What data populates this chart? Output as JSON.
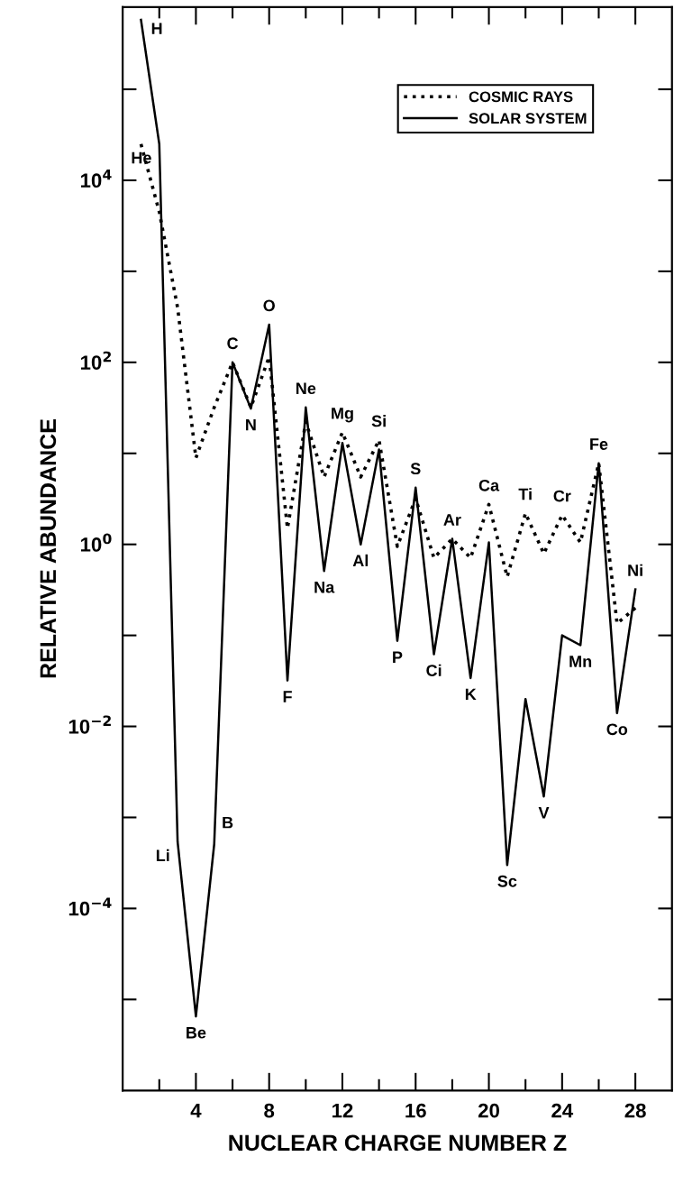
{
  "chart_data": {
    "type": "line",
    "xlabel": "NUCLEAR CHARGE NUMBER Z",
    "ylabel": "RELATIVE ABUNDANCE",
    "x": [
      1,
      2,
      3,
      4,
      5,
      6,
      7,
      8,
      9,
      10,
      11,
      12,
      13,
      14,
      15,
      16,
      17,
      18,
      19,
      20,
      21,
      22,
      23,
      24,
      25,
      26,
      27,
      28
    ],
    "series": [
      {
        "name": "COSMIC RAYS",
        "color": "#000000",
        "line_style": "dotted",
        "values": [
          25000,
          4500,
          400,
          8.9,
          32,
          100,
          32,
          115,
          1.5,
          22,
          5.5,
          17,
          5.5,
          14,
          0.95,
          3.2,
          0.71,
          1.15,
          0.71,
          2.75,
          0.44,
          2.2,
          0.79,
          2.1,
          1.05,
          7.8,
          0.135,
          0.2
        ]
      },
      {
        "name": "SOLAR SYSTEM",
        "color": "#000000",
        "line_style": "solid",
        "values": [
          580000,
          25000,
          0.00054,
          6.5e-06,
          0.00051,
          100,
          31,
          260,
          0.032,
          32,
          0.51,
          13,
          1.0,
          11,
          0.087,
          4.2,
          0.062,
          1.15,
          0.034,
          1.05,
          0.0003,
          0.02,
          0.0017,
          0.1,
          0.078,
          7.8,
          0.014,
          0.32
        ]
      }
    ],
    "log": "y",
    "xlim": [
      0,
      30
    ],
    "ylim": [
      1e-06,
      800000
    ],
    "xticks": [
      {
        "value": 2,
        "label": null
      },
      4,
      {
        "value": 6,
        "label": null
      },
      8,
      {
        "value": 10,
        "label": null
      },
      12,
      {
        "value": 14,
        "label": null
      },
      16,
      {
        "value": 18,
        "label": null
      },
      20,
      {
        "value": 22,
        "label": null
      },
      24,
      {
        "value": 26,
        "label": null
      },
      28
    ],
    "yticks": [
      {
        "value": 1e-05,
        "label": null
      },
      {
        "value": 0.0001,
        "label": "10$^{−4}$"
      },
      {
        "value": 0.001,
        "label": null
      },
      {
        "value": 0.01,
        "label": "10$^{−2}$"
      },
      {
        "value": 0.1,
        "label": null
      },
      {
        "value": 1,
        "label": "10$^{0}$"
      },
      {
        "value": 10,
        "label": null
      },
      {
        "value": 100,
        "label": "10$^{2}$"
      },
      {
        "value": 1000,
        "label": null
      },
      {
        "value": 10000,
        "label": "10$^{4}$"
      },
      {
        "value": 100000,
        "label": null
      }
    ],
    "grid": false,
    "legend": "top right",
    "marker": "none",
    "annotations": [
      {
        "text": "H",
        "x": 1,
        "y": 580000
      },
      {
        "text": "He",
        "x": 2,
        "y": 25000
      },
      {
        "text": "Li",
        "x": 3,
        "y": 0.00054
      },
      {
        "text": "Be",
        "x": 4,
        "y": 6.5e-06
      },
      {
        "text": "B",
        "x": 5,
        "y": 0.00051
      },
      {
        "text": "C",
        "x": 6,
        "y": 100
      },
      {
        "text": "N",
        "x": 7,
        "y": 31
      },
      {
        "text": "O",
        "x": 8,
        "y": 260
      },
      {
        "text": "F",
        "x": 9,
        "y": 0.032
      },
      {
        "text": "Ne",
        "x": 10,
        "y": 32
      },
      {
        "text": "Na",
        "x": 11,
        "y": 0.51
      },
      {
        "text": "Mg",
        "x": 12,
        "y": 13
      },
      {
        "text": "Al",
        "x": 13,
        "y": 1.0
      },
      {
        "text": "Si",
        "x": 14,
        "y": 11
      },
      {
        "text": "P",
        "x": 15,
        "y": 0.087
      },
      {
        "text": "S",
        "x": 16,
        "y": 4.2
      },
      {
        "text": "Ci",
        "x": 17,
        "y": 0.062
      },
      {
        "text": "Ar",
        "x": 18,
        "y": 1.15
      },
      {
        "text": "K",
        "x": 19,
        "y": 0.034
      },
      {
        "text": "Ca",
        "x": 20,
        "y": 2.75
      },
      {
        "text": "Sc",
        "x": 21,
        "y": 0.0003
      },
      {
        "text": "Ti",
        "x": 22,
        "y": 2.2
      },
      {
        "text": "V",
        "x": 23,
        "y": 0.0017
      },
      {
        "text": "Cr",
        "x": 24,
        "y": 2.1
      },
      {
        "text": "Mn",
        "x": 25,
        "y": 0.078
      },
      {
        "text": "Fe",
        "x": 26,
        "y": 7.8
      },
      {
        "text": "Co",
        "x": 27,
        "y": 0.014
      },
      {
        "text": "Ni",
        "x": 28,
        "y": 0.32
      }
    ]
  }
}
